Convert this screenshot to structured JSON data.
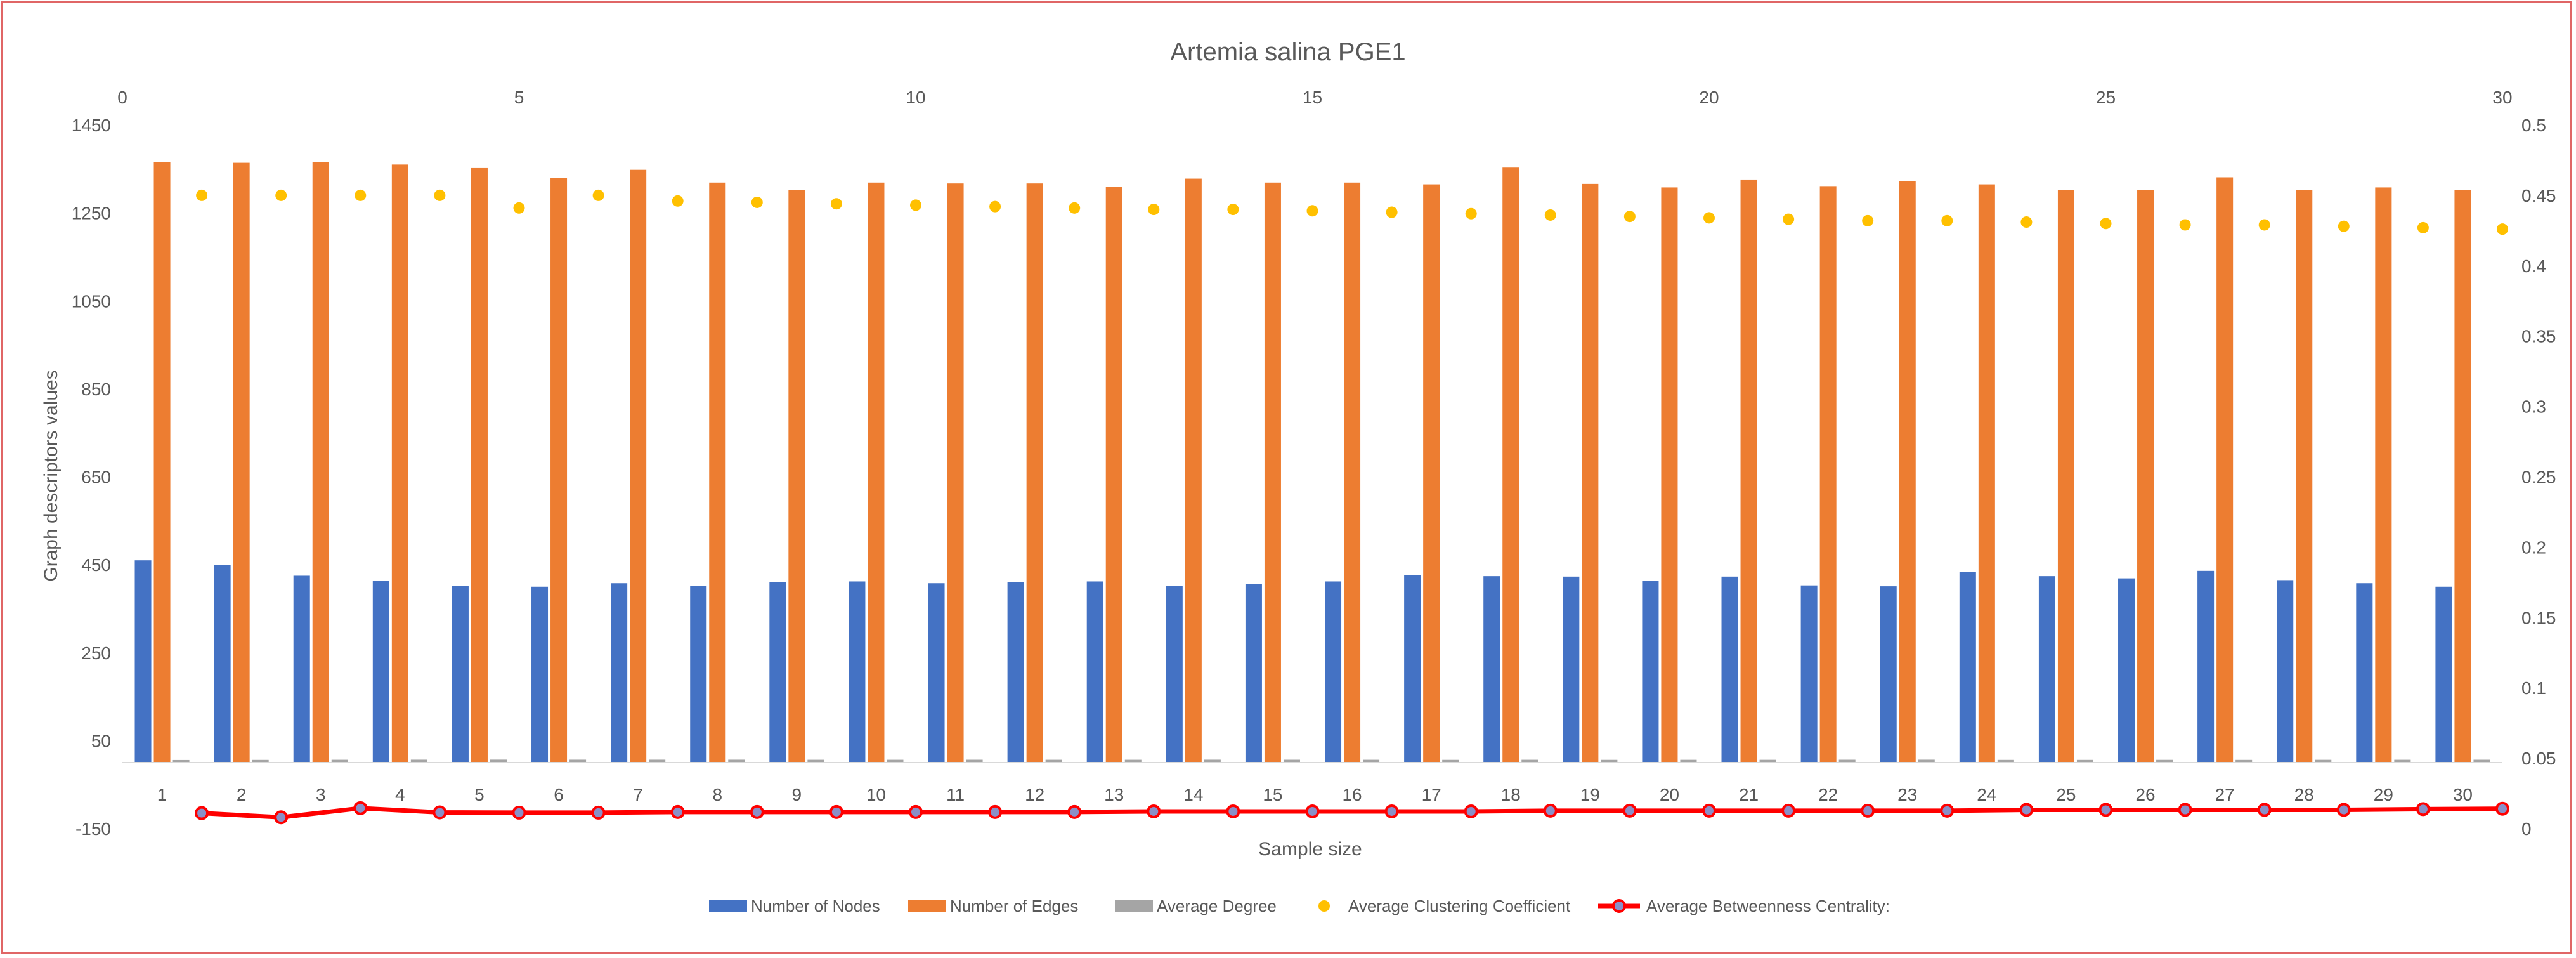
{
  "chart_data": {
    "type": "bar",
    "title": "Artemia salina PGE1",
    "xlabel": "Sample size",
    "ylabel": "Graph descriptors values",
    "categories": [
      "1",
      "2",
      "3",
      "4",
      "5",
      "6",
      "7",
      "8",
      "9",
      "10",
      "11",
      "12",
      "13",
      "14",
      "15",
      "16",
      "17",
      "18",
      "19",
      "20",
      "21",
      "22",
      "23",
      "24",
      "25",
      "26",
      "27",
      "28",
      "29",
      "30"
    ],
    "ylim": [
      -150,
      1450
    ],
    "yticks": [
      -150,
      50,
      250,
      450,
      650,
      850,
      1050,
      1250,
      1450
    ],
    "y2lim": [
      0,
      0.5
    ],
    "y2ticks": [
      0,
      0.05,
      0.1,
      0.15,
      0.2,
      0.25,
      0.3,
      0.35,
      0.4,
      0.45,
      0.5
    ],
    "x2lim": [
      0,
      30
    ],
    "x2ticks": [
      0,
      5,
      10,
      15,
      20,
      25,
      30
    ],
    "series": [
      {
        "name": "Number of Nodes",
        "type": "bar",
        "axis": "primary",
        "color": "#4472c4",
        "values": [
          460,
          450,
          425,
          413,
          402,
          400,
          408,
          402,
          410,
          412,
          408,
          410,
          412,
          402,
          406,
          412,
          427,
          424,
          423,
          414,
          423,
          403,
          401,
          433,
          424,
          419,
          436,
          415,
          408,
          400
        ]
      },
      {
        "name": "Number of Edges",
        "type": "bar",
        "axis": "primary",
        "color": "#ed7d31",
        "values": [
          1365,
          1364,
          1366,
          1360,
          1352,
          1329,
          1348,
          1319,
          1302,
          1319,
          1317,
          1317,
          1309,
          1328,
          1319,
          1319,
          1315,
          1353,
          1316,
          1308,
          1326,
          1311,
          1323,
          1315,
          1302,
          1302,
          1331,
          1302,
          1308,
          1302
        ]
      },
      {
        "name": "Average Degree",
        "type": "bar",
        "axis": "primary",
        "color": "#a5a5a5",
        "values": [
          5.9,
          6.1,
          6.4,
          6.6,
          6.7,
          6.6,
          6.6,
          6.6,
          6.4,
          6.4,
          6.5,
          6.4,
          6.4,
          6.6,
          6.5,
          6.4,
          6.2,
          6.4,
          6.2,
          6.3,
          6.3,
          6.5,
          6.6,
          6.1,
          6.1,
          6.2,
          6.1,
          6.3,
          6.4,
          6.5
        ]
      },
      {
        "name": "Average Clustering Coefficient",
        "type": "scatter",
        "axis": "secondary",
        "color": "#ffc000",
        "x": [
          1,
          2,
          3,
          4,
          5,
          6,
          7,
          8,
          9,
          10,
          11,
          12,
          13,
          14,
          15,
          16,
          17,
          18,
          19,
          20,
          21,
          22,
          23,
          24,
          25,
          26,
          27,
          28,
          29,
          30
        ],
        "values": [
          0.45,
          0.45,
          0.45,
          0.45,
          0.441,
          0.45,
          0.446,
          0.445,
          0.444,
          0.443,
          0.442,
          0.441,
          0.44,
          0.44,
          0.439,
          0.438,
          0.437,
          0.436,
          0.435,
          0.434,
          0.433,
          0.432,
          0.432,
          0.431,
          0.43,
          0.429,
          0.429,
          0.428,
          0.427,
          0.426
        ]
      },
      {
        "name": "Average Betweenness Centrality:",
        "type": "line",
        "axis": "secondary",
        "color": "#ff0000",
        "x": [
          1,
          2,
          3,
          4,
          5,
          6,
          7,
          8,
          9,
          10,
          11,
          12,
          13,
          14,
          15,
          16,
          17,
          18,
          19,
          20,
          21,
          22,
          23,
          24,
          25,
          26,
          27,
          28,
          29,
          30
        ],
        "values": [
          0.011,
          0.008,
          0.0145,
          0.0115,
          0.0113,
          0.0113,
          0.0118,
          0.0118,
          0.0118,
          0.0118,
          0.0118,
          0.0118,
          0.0122,
          0.0122,
          0.0122,
          0.0122,
          0.0122,
          0.0127,
          0.0127,
          0.0127,
          0.0127,
          0.0127,
          0.0127,
          0.0133,
          0.0133,
          0.0133,
          0.0133,
          0.0133,
          0.0138,
          0.0141
        ]
      }
    ]
  }
}
